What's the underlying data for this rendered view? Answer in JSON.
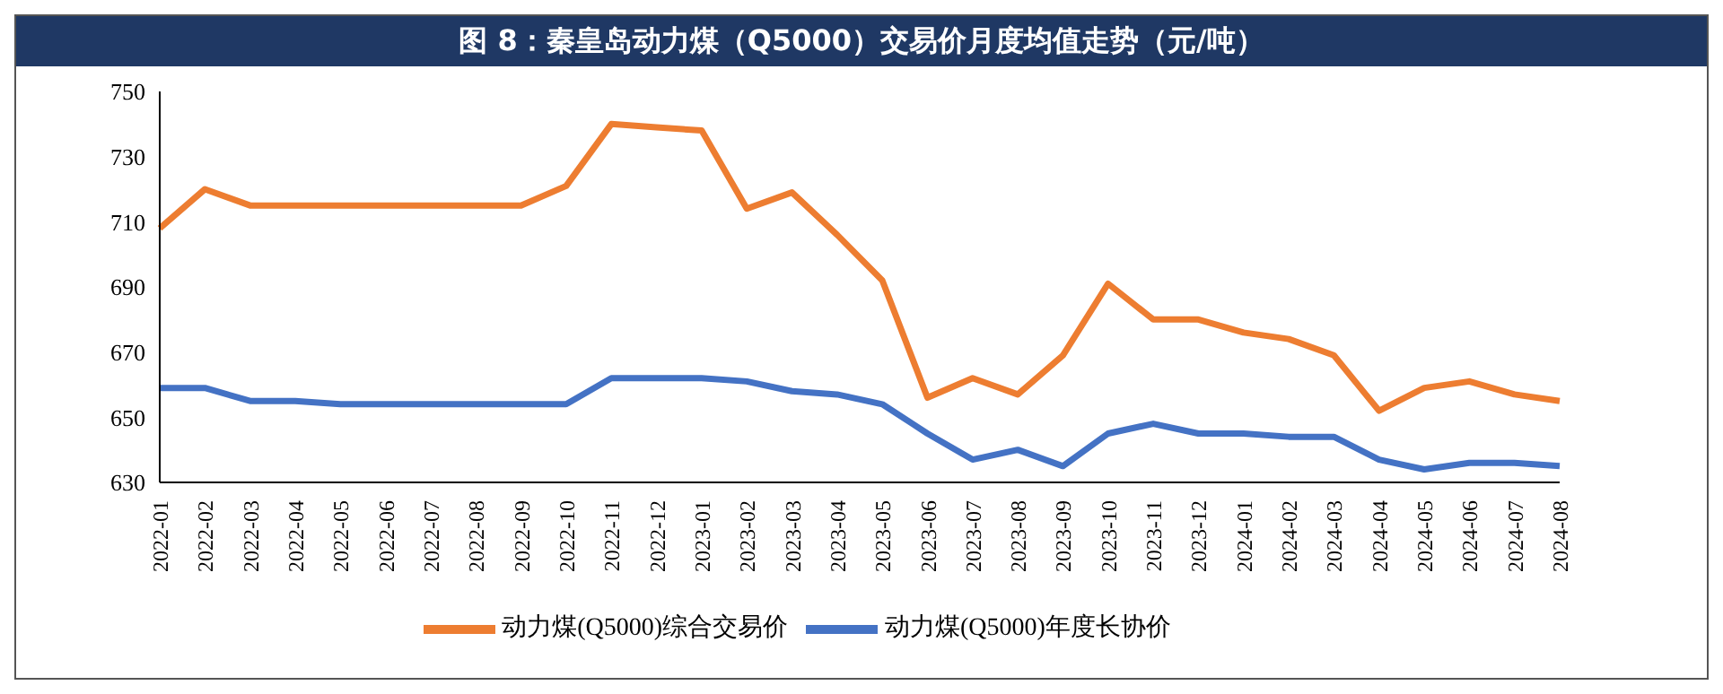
{
  "chart_data": {
    "type": "line",
    "title": "图 8：秦皇岛动力煤（Q5000）交易价月度均值走势（元/吨）",
    "categories": [
      "2022-01",
      "2022-02",
      "2022-03",
      "2022-04",
      "2022-05",
      "2022-06",
      "2022-07",
      "2022-08",
      "2022-09",
      "2022-10",
      "2022-11",
      "2022-12",
      "2023-01",
      "2023-02",
      "2023-03",
      "2023-04",
      "2023-05",
      "2023-06",
      "2023-07",
      "2023-08",
      "2023-09",
      "2023-10",
      "2023-11",
      "2023-12",
      "2024-01",
      "2024-02",
      "2024-03",
      "2024-04",
      "2024-05",
      "2024-06",
      "2024-07",
      "2024-08"
    ],
    "series": [
      {
        "name": "动力煤(Q5000)综合交易价",
        "color": "#ed7d31",
        "values": [
          708,
          720,
          715,
          715,
          715,
          715,
          715,
          715,
          715,
          721,
          740,
          739,
          738,
          714,
          719,
          706,
          692,
          656,
          662,
          657,
          669,
          691,
          680,
          680,
          676,
          674,
          669,
          652,
          659,
          661,
          657,
          655
        ]
      },
      {
        "name": "动力煤(Q5000)年度长协价",
        "color": "#4472c4",
        "values": [
          659,
          659,
          655,
          655,
          654,
          654,
          654,
          654,
          654,
          654,
          662,
          662,
          662,
          661,
          658,
          657,
          654,
          645,
          637,
          640,
          635,
          645,
          648,
          645,
          645,
          644,
          644,
          637,
          634,
          636,
          636,
          635
        ]
      }
    ],
    "ylim": [
      630,
      750
    ],
    "yticks": [
      630,
      650,
      670,
      690,
      710,
      730,
      750
    ],
    "grid": false,
    "legend": "bottom",
    "marker": "none",
    "line_style": "solid"
  }
}
